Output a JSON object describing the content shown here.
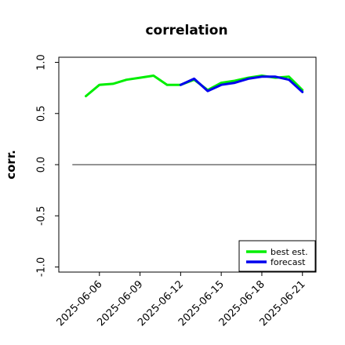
{
  "chart_data": {
    "type": "line",
    "title": "correlation",
    "ylabel": "corr.",
    "xlabel": "",
    "ylim": [
      -1.05,
      1.05
    ],
    "xlim": [
      "2025-06-03",
      "2025-06-22"
    ],
    "yticks": [
      -1.0,
      -0.5,
      0.0,
      0.5,
      1.0
    ],
    "ytick_labels": [
      "-1.0",
      "-0.5",
      "0.0",
      "0.5",
      "1.0"
    ],
    "xticks": [
      "2025-06-06",
      "2025-06-09",
      "2025-06-12",
      "2025-06-15",
      "2025-06-18",
      "2025-06-21"
    ],
    "xtick_labels": [
      "2025-06-06",
      "2025-06-09",
      "2025-06-12",
      "2025-06-15",
      "2025-06-18",
      "2025-06-21"
    ],
    "highlight_tick_color": "#2e8b2e",
    "highlight_tick": "2025-06-12",
    "grid": false,
    "legend_position": "lower-right",
    "zero_line": {
      "y": 0,
      "from": "2025-06-04",
      "to": "2025-06-22",
      "color": "#555555"
    },
    "series": [
      {
        "name": "best est.",
        "color": "#00ee00",
        "x": [
          "2025-06-05",
          "2025-06-06",
          "2025-06-07",
          "2025-06-08",
          "2025-06-09",
          "2025-06-10",
          "2025-06-11",
          "2025-06-12",
          "2025-06-13",
          "2025-06-14",
          "2025-06-15",
          "2025-06-16",
          "2025-06-17",
          "2025-06-18",
          "2025-06-19",
          "2025-06-20",
          "2025-06-21"
        ],
        "values": [
          0.67,
          0.78,
          0.79,
          0.83,
          0.85,
          0.87,
          0.78,
          0.78,
          0.83,
          0.73,
          0.8,
          0.82,
          0.85,
          0.87,
          0.85,
          0.86,
          0.73
        ]
      },
      {
        "name": "forecast",
        "color": "#0000ee",
        "x": [
          "2025-06-12",
          "2025-06-13",
          "2025-06-14",
          "2025-06-15",
          "2025-06-16",
          "2025-06-17",
          "2025-06-18",
          "2025-06-19",
          "2025-06-20",
          "2025-06-21"
        ],
        "values": [
          0.78,
          0.84,
          0.72,
          0.78,
          0.8,
          0.84,
          0.86,
          0.86,
          0.83,
          0.71
        ]
      }
    ]
  }
}
